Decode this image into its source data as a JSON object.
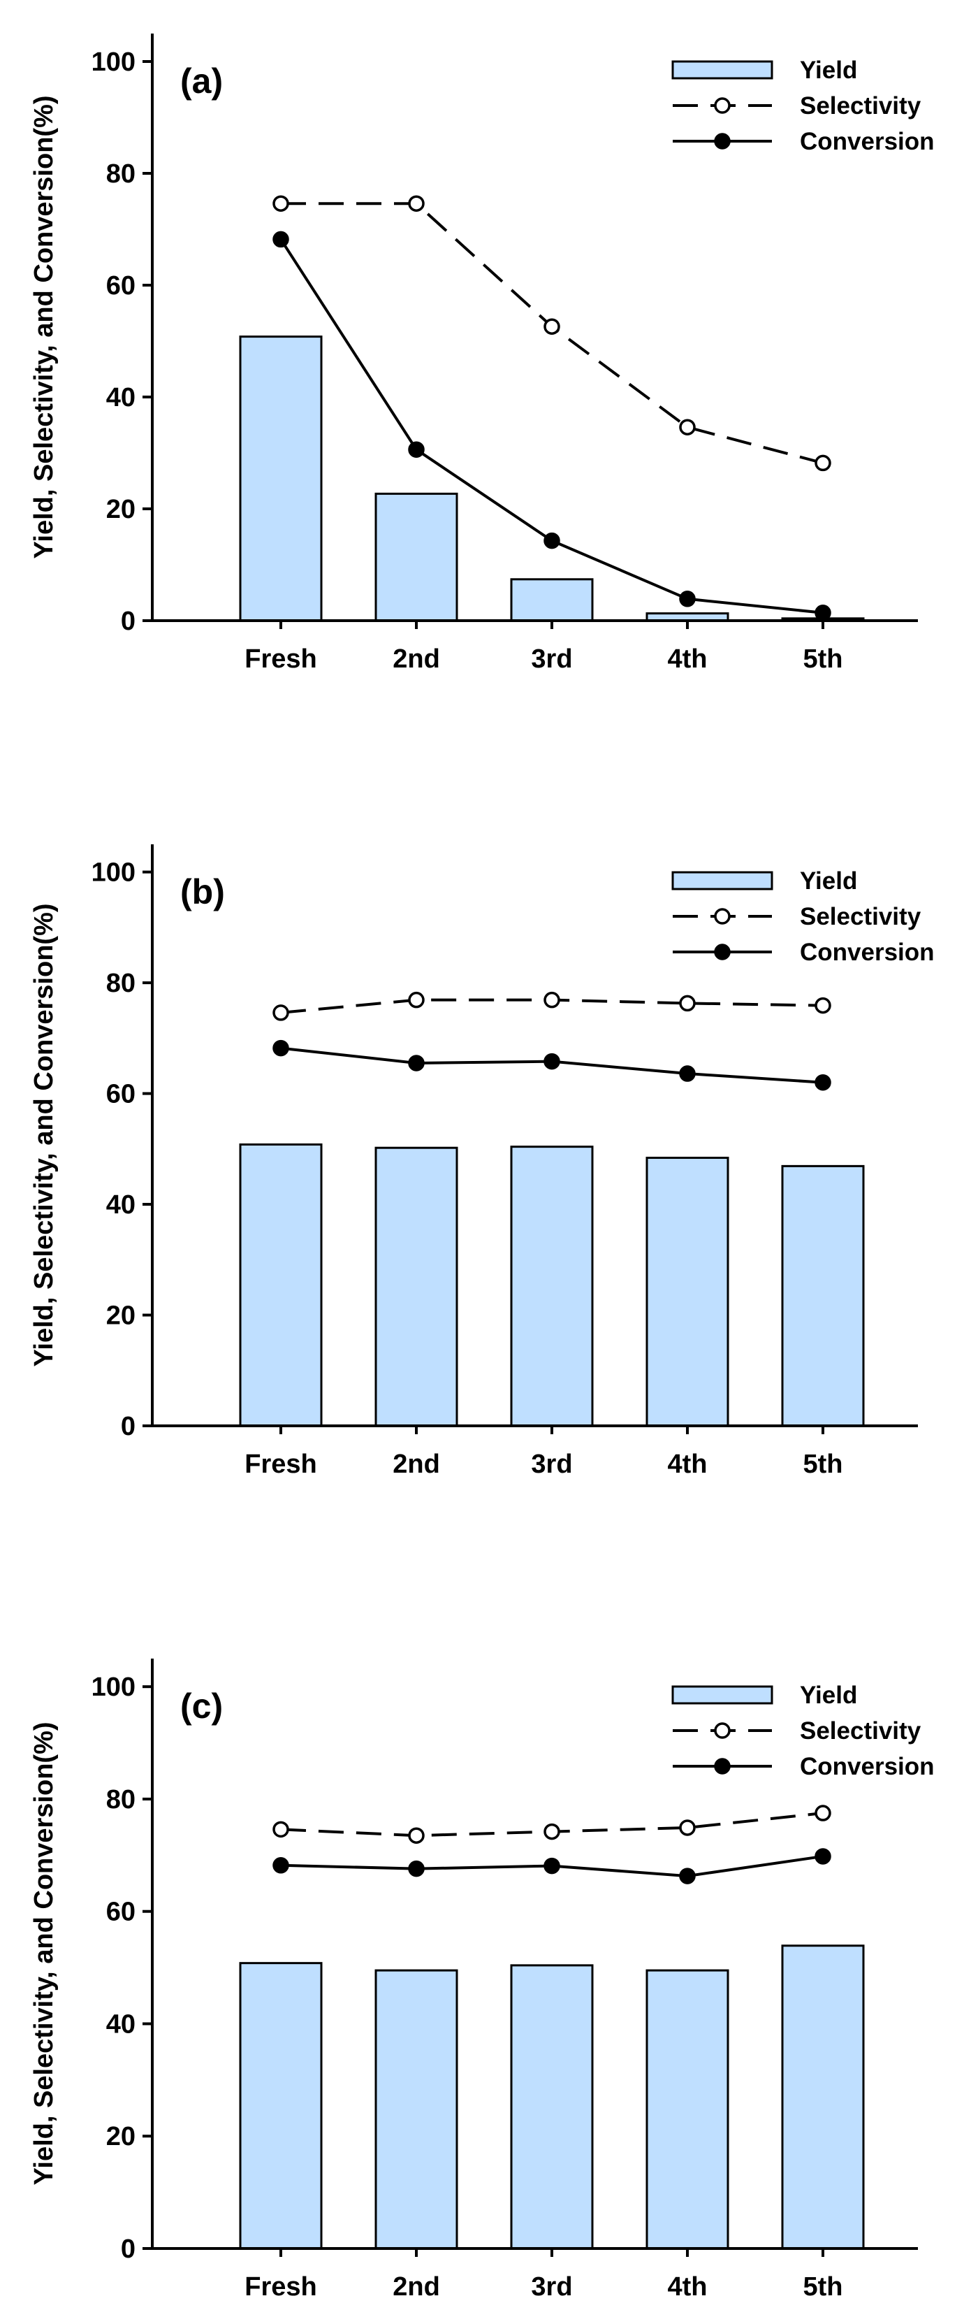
{
  "figure": {
    "legend_position": "top-right",
    "colors": {
      "bar_fill": "#bfdfff",
      "bar_stroke": "#000000",
      "line": "#000000",
      "open_marker_fill": "#ffffff",
      "filled_marker_fill": "#000000"
    }
  },
  "chart_data": [
    {
      "type": "bar",
      "panel_label": "(a)",
      "categories": [
        "Fresh",
        "2nd",
        "3rd",
        "4th",
        "5th"
      ],
      "series": [
        {
          "name": "Yield",
          "kind": "bar",
          "values": [
            50.8,
            22.7,
            7.4,
            1.3,
            0.4
          ]
        },
        {
          "name": "Selectivity",
          "kind": "line-dashed-open",
          "values": [
            74.6,
            74.6,
            52.6,
            34.6,
            28.2
          ]
        },
        {
          "name": "Conversion",
          "kind": "line-solid-filled",
          "values": [
            68.2,
            30.6,
            14.3,
            3.9,
            1.4
          ]
        }
      ],
      "xlabel": "",
      "ylabel": "Yield, Selectivity, and Conversion(%)",
      "ylim": [
        0,
        105
      ],
      "yticks": [
        0,
        20,
        40,
        60,
        80,
        100
      ],
      "legend": [
        "Yield",
        "Selectivity",
        "Conversion"
      ]
    },
    {
      "type": "bar",
      "panel_label": "(b)",
      "categories": [
        "Fresh",
        "2nd",
        "3rd",
        "4th",
        "5th"
      ],
      "series": [
        {
          "name": "Yield",
          "kind": "bar",
          "values": [
            50.8,
            50.2,
            50.4,
            48.4,
            46.9
          ]
        },
        {
          "name": "Selectivity",
          "kind": "line-dashed-open",
          "values": [
            74.6,
            76.9,
            76.9,
            76.3,
            75.9
          ]
        },
        {
          "name": "Conversion",
          "kind": "line-solid-filled",
          "values": [
            68.2,
            65.5,
            65.8,
            63.6,
            62.0
          ]
        }
      ],
      "xlabel": "",
      "ylabel": "Yield, Selectivity, and Conversion(%)",
      "ylim": [
        0,
        105
      ],
      "yticks": [
        0,
        20,
        40,
        60,
        80,
        100
      ],
      "legend": [
        "Yield",
        "Selectivity",
        "Conversion"
      ]
    },
    {
      "type": "bar",
      "panel_label": "(c)",
      "categories": [
        "Fresh",
        "2nd",
        "3rd",
        "4th",
        "5th"
      ],
      "series": [
        {
          "name": "Yield",
          "kind": "bar",
          "values": [
            50.8,
            49.5,
            50.4,
            49.5,
            53.9
          ]
        },
        {
          "name": "Selectivity",
          "kind": "line-dashed-open",
          "values": [
            74.6,
            73.5,
            74.2,
            74.9,
            77.5
          ]
        },
        {
          "name": "Conversion",
          "kind": "line-solid-filled",
          "values": [
            68.2,
            67.6,
            68.1,
            66.3,
            69.8
          ]
        }
      ],
      "xlabel": "",
      "ylabel": "Yield, Selectivity, and Conversion(%)",
      "ylim": [
        0,
        105
      ],
      "yticks": [
        0,
        20,
        40,
        60,
        80,
        100
      ],
      "legend": [
        "Yield",
        "Selectivity",
        "Conversion"
      ]
    }
  ]
}
